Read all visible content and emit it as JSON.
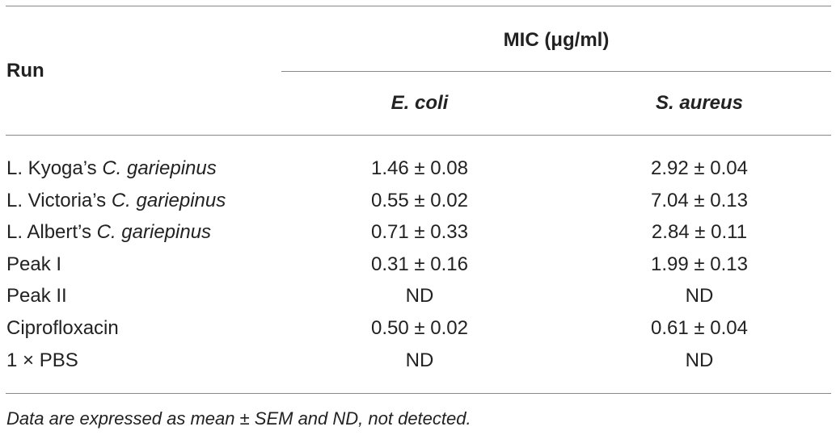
{
  "header": {
    "group": "MIC (μg/ml)",
    "row_label": "Run",
    "columns": [
      "E. coli",
      "S. aureus"
    ]
  },
  "table": {
    "rows": [
      {
        "label": [
          "L. Kyoga’s ",
          "C. gariepinus"
        ],
        "values": [
          "1.46 ± 0.08",
          "2.92 ± 0.04"
        ]
      },
      {
        "label": [
          "L. Victoria’s ",
          "C. gariepinus"
        ],
        "values": [
          "0.55 ± 0.02",
          "7.04 ± 0.13"
        ]
      },
      {
        "label": [
          "L. Albert’s ",
          "C. gariepinus"
        ],
        "values": [
          "0.71 ± 0.33",
          "2.84 ± 0.11"
        ]
      },
      {
        "label": [
          "Peak I"
        ],
        "values": [
          "0.31 ± 0.16",
          "1.99 ± 0.13"
        ]
      },
      {
        "label": [
          "Peak II"
        ],
        "values": [
          "ND",
          "ND"
        ]
      },
      {
        "label": [
          "Ciprofloxacin"
        ],
        "values": [
          "0.50 ± 0.02",
          "0.61 ± 0.04"
        ]
      },
      {
        "label": [
          "1 × PBS"
        ],
        "values": [
          "ND",
          "ND"
        ]
      }
    ]
  },
  "footnote": "Data are expressed as mean ± SEM and ND, not detected."
}
